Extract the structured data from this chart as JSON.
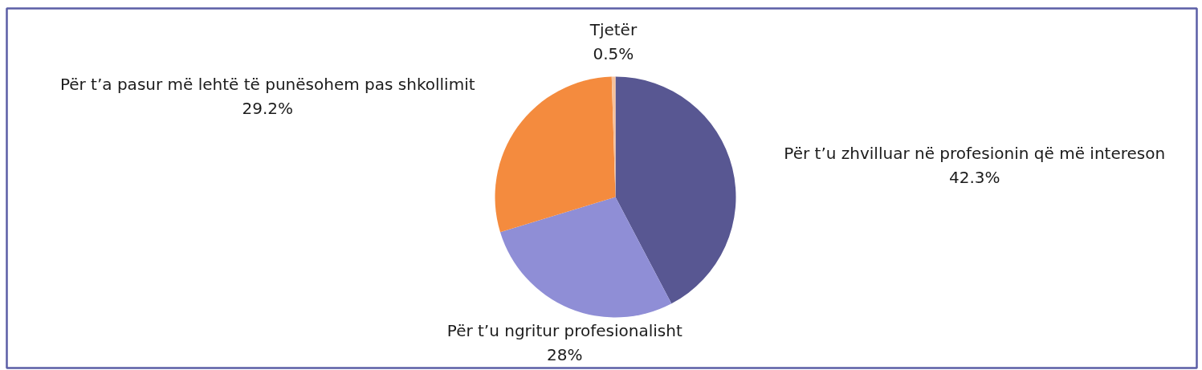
{
  "chart_data": {
    "type": "pie",
    "categories": [
      "Për t’u zhvilluar në profesionin që më intereson",
      "Për t’u ngritur profesionalisht",
      "Për t’a pasur më lehtë të punësohem pas shkollimit",
      "Tjetër"
    ],
    "values": [
      42.3,
      28,
      29.2,
      0.5
    ],
    "colors": [
      "#585792",
      "#8f8ed6",
      "#f48b3e",
      "#f7c29c"
    ],
    "value_labels": [
      "42.3%",
      "28%",
      "29.2%",
      "0.5%"
    ]
  }
}
